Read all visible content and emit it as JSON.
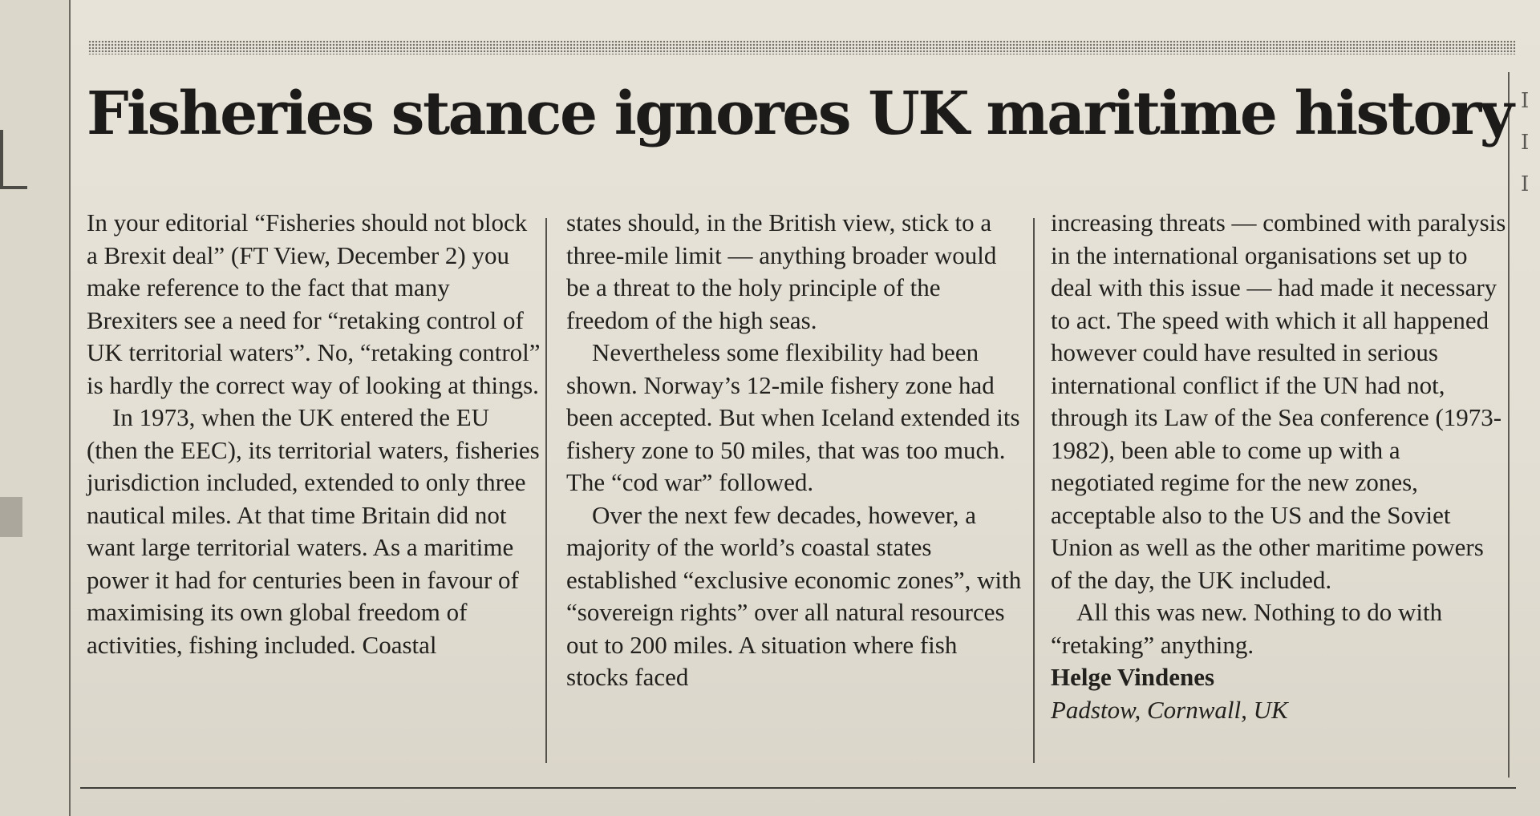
{
  "article": {
    "headline": "Fisheries stance ignores UK maritime history",
    "column1": {
      "p1": "In your editorial “Fisheries should not block a Brexit deal” (FT View, December 2) you make reference to the fact that many Brexiters see a need for “retaking control of UK territorial waters”. No, “retaking control” is hardly the correct way of looking at things.",
      "p2": "In 1973, when the UK entered the EU (then the EEC), its territorial waters, fisheries jurisdiction included, extended to only three nautical miles. At that time Britain did not want large territorial waters. As a maritime power it had for centuries been in favour of maximising its own global freedom of activities, fishing included. Coastal"
    },
    "column2": {
      "p1": "states should, in the British view, stick to a three-mile limit — anything broader would be a threat to the holy principle of the freedom of the high seas.",
      "p2": "Nevertheless some flexibility had been shown. Norway’s 12-mile fishery zone had been accepted. But when Iceland extended its fishery zone to 50 miles, that was too much. The “cod war” followed.",
      "p3": "Over the next few decades, however, a majority of the world’s coastal states established “exclusive economic zones”, with “sovereign rights” over all natural resources out to 200 miles. A situation where fish stocks faced"
    },
    "column3": {
      "p1": "increasing threats — combined with paralysis in the international organisations set up to deal with this issue — had made it necessary to act. The speed with which it all happened however could have resulted in serious international conflict if the UN had not, through its Law of the Sea conference (1973-1982), been able to come up with a negotiated regime for the new zones, acceptable also to the US and the Soviet Union as well as the other maritime powers of the day, the UK included.",
      "p2": "All this was new. Nothing to do with “retaking” anything.",
      "author": "Helge Vindenes",
      "location": "Padstow, Cornwall, UK"
    }
  },
  "colors": {
    "paper": "#e5e1d6",
    "ink": "#22211e"
  }
}
